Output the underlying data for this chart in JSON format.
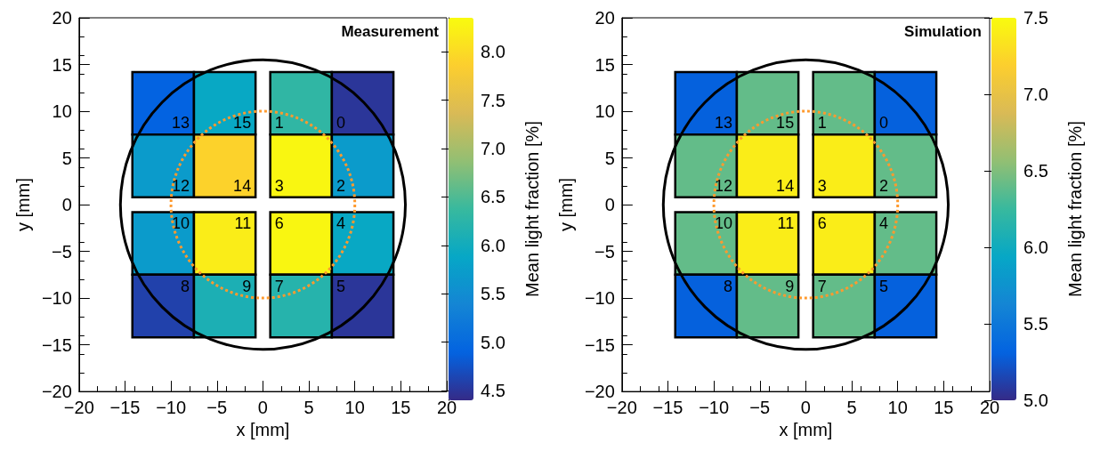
{
  "chart_data": [
    {
      "type": "heatmap",
      "title": "Measurement",
      "xlabel": "x [mm]",
      "ylabel": "y [mm]",
      "clabel": "Mean light fraction [%]",
      "x": [
        -10.85,
        -4.15,
        4.15,
        10.85
      ],
      "y": [
        10.85,
        4.15,
        -4.15,
        -10.85
      ],
      "cells": [
        [
          4.9,
          5.9,
          6.3,
          4.5
        ],
        [
          5.7,
          7.9,
          8.3,
          5.7
        ],
        [
          5.7,
          8.2,
          8.3,
          5.9
        ],
        [
          4.6,
          6.1,
          6.2,
          4.5
        ]
      ],
      "annotations": [
        "13",
        "15",
        "1",
        "0",
        "12",
        "14",
        "3",
        "2",
        "10",
        "11",
        "6",
        "4",
        "8",
        "9",
        "7",
        "5"
      ],
      "clim": [
        4.4,
        8.35
      ],
      "cticks": [
        {
          "value": 4.5,
          "label": "4.5"
        },
        {
          "value": 5,
          "label": "5.0"
        },
        {
          "value": 5.5,
          "label": "5.5"
        },
        {
          "value": 6,
          "label": "6.0"
        },
        {
          "value": 6.5,
          "label": "6.5"
        },
        {
          "value": 7,
          "label": "7.0"
        },
        {
          "value": 7.5,
          "label": "7.5"
        },
        {
          "value": 8,
          "label": "8.0"
        }
      ],
      "xlim": [
        -20,
        20
      ],
      "xticks": [
        -20,
        -15,
        -10,
        -5,
        0,
        5,
        10,
        15,
        20
      ],
      "ylim": [
        -20,
        20
      ],
      "yticks": [
        -20,
        -15,
        -10,
        -5,
        0,
        5,
        10,
        15,
        20
      ],
      "grid": false
    },
    {
      "type": "heatmap",
      "title": "Simulation",
      "xlabel": "x [mm]",
      "ylabel": "y [mm]",
      "clabel": "Mean light fraction [%]",
      "x": [
        -10.85,
        -4.15,
        4.15,
        10.85
      ],
      "y": [
        10.85,
        4.15,
        -4.15,
        -10.85
      ],
      "cells": [
        [
          5.3,
          6.4,
          6.4,
          5.3
        ],
        [
          6.4,
          7.4,
          7.4,
          6.4
        ],
        [
          6.4,
          7.4,
          7.4,
          6.4
        ],
        [
          5.3,
          6.4,
          6.4,
          5.3
        ]
      ],
      "annotations": [
        "13",
        "15",
        "1",
        "0",
        "12",
        "14",
        "3",
        "2",
        "10",
        "11",
        "6",
        "4",
        "8",
        "9",
        "7",
        "5"
      ],
      "clim": [
        5,
        7.5
      ],
      "cticks": [
        {
          "value": 5,
          "label": "5.0"
        },
        {
          "value": 5.5,
          "label": "5.5"
        },
        {
          "value": 6,
          "label": "6.0"
        },
        {
          "value": 6.5,
          "label": "6.5"
        },
        {
          "value": 7,
          "label": "7.0"
        },
        {
          "value": 7.5,
          "label": "7.5"
        }
      ],
      "xlim": [
        -20,
        20
      ],
      "xticks": [
        -20,
        -15,
        -10,
        -5,
        0,
        5,
        10,
        15,
        20
      ],
      "ylim": [
        -20,
        20
      ],
      "yticks": [
        -20,
        -15,
        -10,
        -5,
        0,
        5,
        10,
        15,
        20
      ],
      "grid": false
    }
  ]
}
